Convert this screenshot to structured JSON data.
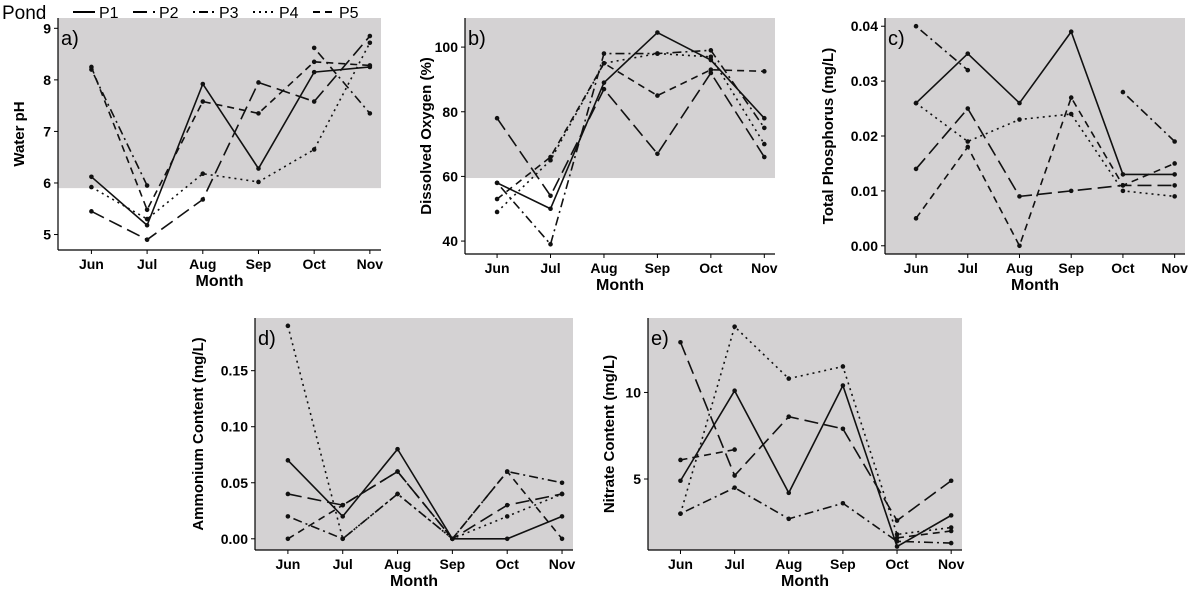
{
  "legend": {
    "title": "Pond",
    "entries": [
      {
        "name": "P1",
        "dash": "solid"
      },
      {
        "name": "P2",
        "dash": "longdash"
      },
      {
        "name": "P3",
        "dash": "dotdash"
      },
      {
        "name": "P4",
        "dash": "dotted"
      },
      {
        "name": "P5",
        "dash": "dashed"
      }
    ]
  },
  "chart_data": [
    {
      "id": "a",
      "panel_label": "a)",
      "type": "line",
      "title": "",
      "xlabel": "Month",
      "ylabel": "Water pH",
      "categories": [
        "Jun",
        "Jul",
        "Aug",
        "Sep",
        "Oct",
        "Nov"
      ],
      "ylim": [
        4.7,
        9.2
      ],
      "yticks": [
        5,
        6,
        7,
        8,
        9
      ],
      "shaded_range": [
        5.9,
        9.2
      ],
      "series": [
        {
          "name": "P1",
          "values": [
            6.12,
            5.18,
            7.92,
            6.28,
            8.15,
            8.25
          ]
        },
        {
          "name": "P2",
          "values": [
            5.45,
            4.9,
            5.68,
            7.95,
            7.58,
            8.85
          ]
        },
        {
          "name": "P3",
          "values": [
            8.2,
            5.95,
            null,
            null,
            8.62,
            7.35
          ]
        },
        {
          "name": "P4",
          "values": [
            5.92,
            5.3,
            6.18,
            6.02,
            6.65,
            8.72
          ]
        },
        {
          "name": "P5",
          "values": [
            8.25,
            5.48,
            7.58,
            7.35,
            8.35,
            8.28
          ]
        }
      ]
    },
    {
      "id": "b",
      "panel_label": "b)",
      "type": "line",
      "title": "",
      "xlabel": "Month",
      "ylabel": "Dissolved Oxygen (%)",
      "categories": [
        "Jun",
        "Jul",
        "Aug",
        "Sep",
        "Oct",
        "Nov"
      ],
      "ylim": [
        36,
        109
      ],
      "yticks": [
        40,
        60,
        80,
        100
      ],
      "shaded_range": [
        59.5,
        109
      ],
      "series": [
        {
          "name": "P1",
          "values": [
            58,
            50,
            89,
            104.5,
            96,
            78
          ]
        },
        {
          "name": "P2",
          "values": [
            78,
            54,
            87,
            67,
            92,
            66
          ]
        },
        {
          "name": "P3",
          "values": [
            58,
            39,
            98,
            98,
            99,
            75
          ]
        },
        {
          "name": "P4",
          "values": [
            49,
            65,
            95,
            98,
            97,
            70
          ]
        },
        {
          "name": "P5",
          "values": [
            53,
            66,
            95,
            85,
            93,
            92.5
          ]
        }
      ]
    },
    {
      "id": "c",
      "panel_label": "c)",
      "type": "line",
      "title": "",
      "xlabel": "Month",
      "ylabel": "Total Phosphorus (mg/L)",
      "categories": [
        "Jun",
        "Jul",
        "Aug",
        "Sep",
        "Oct",
        "Nov"
      ],
      "ylim": [
        -0.0015,
        0.0415
      ],
      "yticks": [
        0.0,
        0.01,
        0.02,
        0.03,
        0.04
      ],
      "ytick_labels": [
        "0.00",
        "0.01",
        "0.02",
        "0.03",
        "0.04"
      ],
      "shaded_range": [
        -0.0015,
        0.0415
      ],
      "series": [
        {
          "name": "P1",
          "values": [
            0.026,
            0.035,
            0.026,
            0.039,
            0.013,
            0.013
          ]
        },
        {
          "name": "P2",
          "values": [
            0.014,
            0.025,
            0.009,
            0.01,
            0.011,
            0.011
          ]
        },
        {
          "name": "P3",
          "values": [
            0.04,
            0.032,
            null,
            null,
            0.028,
            0.019
          ]
        },
        {
          "name": "P4",
          "values": [
            0.026,
            0.019,
            0.023,
            0.024,
            0.01,
            0.009
          ]
        },
        {
          "name": "P5",
          "values": [
            0.005,
            0.018,
            0.0,
            0.027,
            0.011,
            0.015
          ]
        }
      ]
    },
    {
      "id": "d",
      "panel_label": "d)",
      "type": "line",
      "title": "",
      "xlabel": "Month",
      "ylabel": "Ammonium Content (mg/L)",
      "categories": [
        "Jun",
        "Jul",
        "Aug",
        "Sep",
        "Oct",
        "Nov"
      ],
      "ylim": [
        -0.01,
        0.197
      ],
      "yticks": [
        0.0,
        0.05,
        0.1,
        0.15
      ],
      "ytick_labels": [
        "0.00",
        "0.05",
        "0.10",
        "0.15"
      ],
      "shaded_range": [
        -0.01,
        0.197
      ],
      "series": [
        {
          "name": "P1",
          "values": [
            0.07,
            0.02,
            0.08,
            0.0,
            0.0,
            0.02
          ]
        },
        {
          "name": "P2",
          "values": [
            0.04,
            0.03,
            0.06,
            0.0,
            0.03,
            0.04
          ]
        },
        {
          "name": "P3",
          "values": [
            0.02,
            0.0,
            0.04,
            0.0,
            0.06,
            0.05
          ]
        },
        {
          "name": "P4",
          "values": [
            0.19,
            0.0,
            0.04,
            0.0,
            0.02,
            0.04
          ]
        },
        {
          "name": "P5",
          "values": [
            0.0,
            0.03,
            0.06,
            0.0,
            0.06,
            0.0
          ]
        }
      ]
    },
    {
      "id": "e",
      "panel_label": "e)",
      "type": "line",
      "title": "",
      "xlabel": "Month",
      "ylabel": "Nitrate Content (mg/L)",
      "categories": [
        "Jun",
        "Jul",
        "Aug",
        "Sep",
        "Oct",
        "Nov"
      ],
      "ylim": [
        0.9,
        14.3
      ],
      "yticks": [
        5,
        10
      ],
      "shaded_range": [
        0.9,
        14.3
      ],
      "series": [
        {
          "name": "P1",
          "values": [
            4.9,
            10.1,
            4.2,
            10.4,
            1.1,
            2.9
          ]
        },
        {
          "name": "P2",
          "values": [
            12.9,
            5.2,
            8.6,
            7.9,
            2.6,
            4.9
          ]
        },
        {
          "name": "P3",
          "values": [
            3.0,
            4.5,
            2.7,
            3.6,
            1.4,
            1.3
          ]
        },
        {
          "name": "P4",
          "values": [
            3.0,
            13.8,
            10.8,
            11.5,
            1.8,
            2.2
          ]
        },
        {
          "name": "P5",
          "values": [
            6.1,
            6.7,
            null,
            null,
            1.6,
            2.0
          ]
        }
      ]
    }
  ]
}
